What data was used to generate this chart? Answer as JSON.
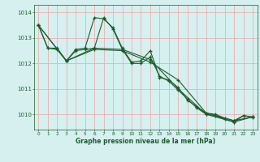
{
  "title": "Graphe pression niveau de la mer (hPa)",
  "bg_color": "#d6f0f0",
  "grid_color": "#e8b0b0",
  "line_color": "#1a5c2a",
  "xlim": [
    -0.5,
    23.5
  ],
  "ylim": [
    1009.4,
    1014.3
  ],
  "yticks": [
    1010,
    1011,
    1012,
    1013,
    1014
  ],
  "xticks": [
    0,
    1,
    2,
    3,
    4,
    5,
    6,
    7,
    8,
    9,
    10,
    11,
    12,
    13,
    14,
    15,
    16,
    17,
    18,
    19,
    20,
    21,
    22,
    23
  ],
  "series1_x": [
    0,
    1,
    2,
    3,
    4,
    5,
    6,
    7,
    8,
    9,
    10,
    11,
    12,
    13,
    14,
    15,
    16,
    17,
    18,
    19,
    20,
    21,
    22,
    23
  ],
  "series1_y": [
    1013.5,
    1012.6,
    1012.6,
    1012.1,
    1012.55,
    1012.6,
    1013.8,
    1013.75,
    1013.4,
    1012.6,
    1012.05,
    1012.1,
    1012.5,
    1011.45,
    1011.35,
    1011.05,
    1010.55,
    1010.3,
    1010.05,
    1010.0,
    1009.85,
    1009.75,
    1009.95,
    1009.9
  ],
  "series2_x": [
    0,
    1,
    2,
    3,
    4,
    5,
    6,
    7,
    8,
    9,
    10,
    11,
    12,
    13,
    14,
    15,
    16,
    17,
    18,
    19,
    20,
    21,
    22,
    23
  ],
  "series2_y": [
    1013.5,
    1012.6,
    1012.55,
    1012.1,
    1012.5,
    1012.55,
    1012.6,
    1013.8,
    1013.35,
    1012.55,
    1012.0,
    1012.0,
    1012.25,
    1011.5,
    1011.3,
    1010.95,
    1010.6,
    1010.25,
    1010.0,
    1009.95,
    1009.8,
    1009.7,
    1009.95,
    1009.88
  ],
  "series3_x": [
    0,
    3,
    6,
    9,
    12,
    15,
    18,
    21,
    23
  ],
  "series3_y": [
    1013.5,
    1012.1,
    1012.6,
    1012.55,
    1012.15,
    1011.0,
    1010.0,
    1009.7,
    1009.9
  ],
  "series4_x": [
    0,
    3,
    6,
    9,
    12,
    15,
    18,
    21,
    23
  ],
  "series4_y": [
    1013.5,
    1012.1,
    1012.55,
    1012.5,
    1012.05,
    1011.35,
    1010.05,
    1009.75,
    1009.9
  ]
}
